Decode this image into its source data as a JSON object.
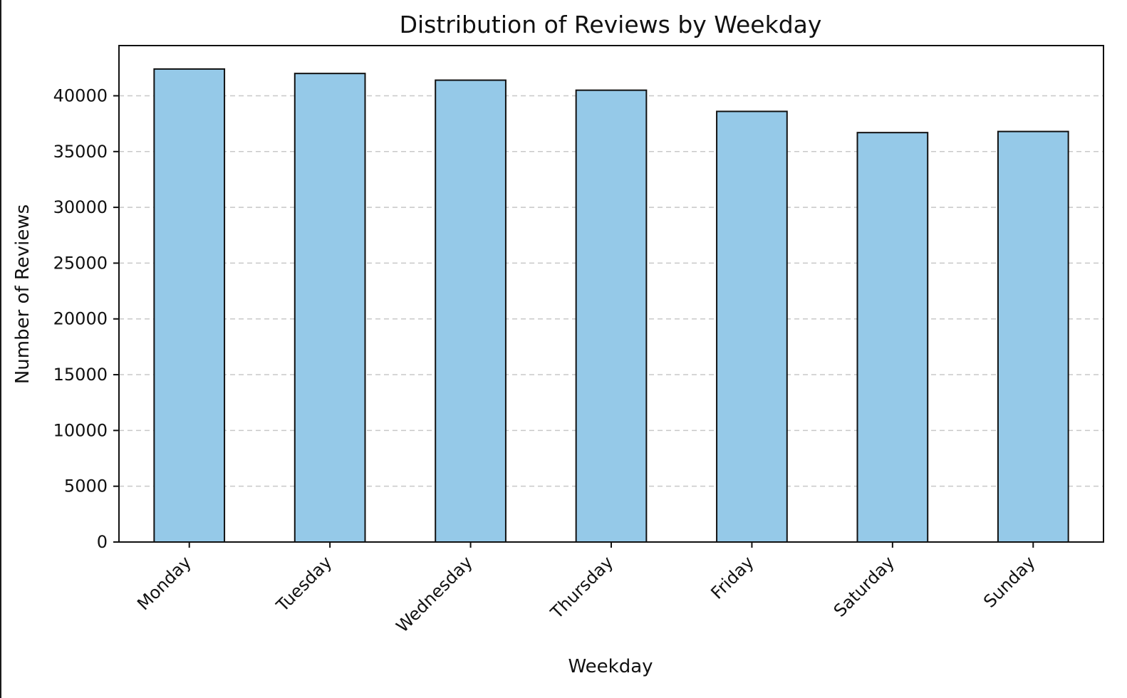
{
  "chart_data": {
    "type": "bar",
    "title": "Distribution of Reviews by Weekday",
    "xlabel": "Weekday",
    "ylabel": "Number of Reviews",
    "categories": [
      "Monday",
      "Tuesday",
      "Wednesday",
      "Thursday",
      "Friday",
      "Saturday",
      "Sunday"
    ],
    "values": [
      42400,
      42000,
      41400,
      40500,
      38600,
      36700,
      36800
    ],
    "ylim": [
      0,
      44500
    ],
    "yticks": [
      0,
      5000,
      10000,
      15000,
      20000,
      25000,
      30000,
      35000,
      40000
    ],
    "grid": "y-dashed",
    "legend": "none",
    "bar_color": "#95c9e8",
    "bar_edge_color": "#111111",
    "grid_color": "#c8c8c8"
  }
}
